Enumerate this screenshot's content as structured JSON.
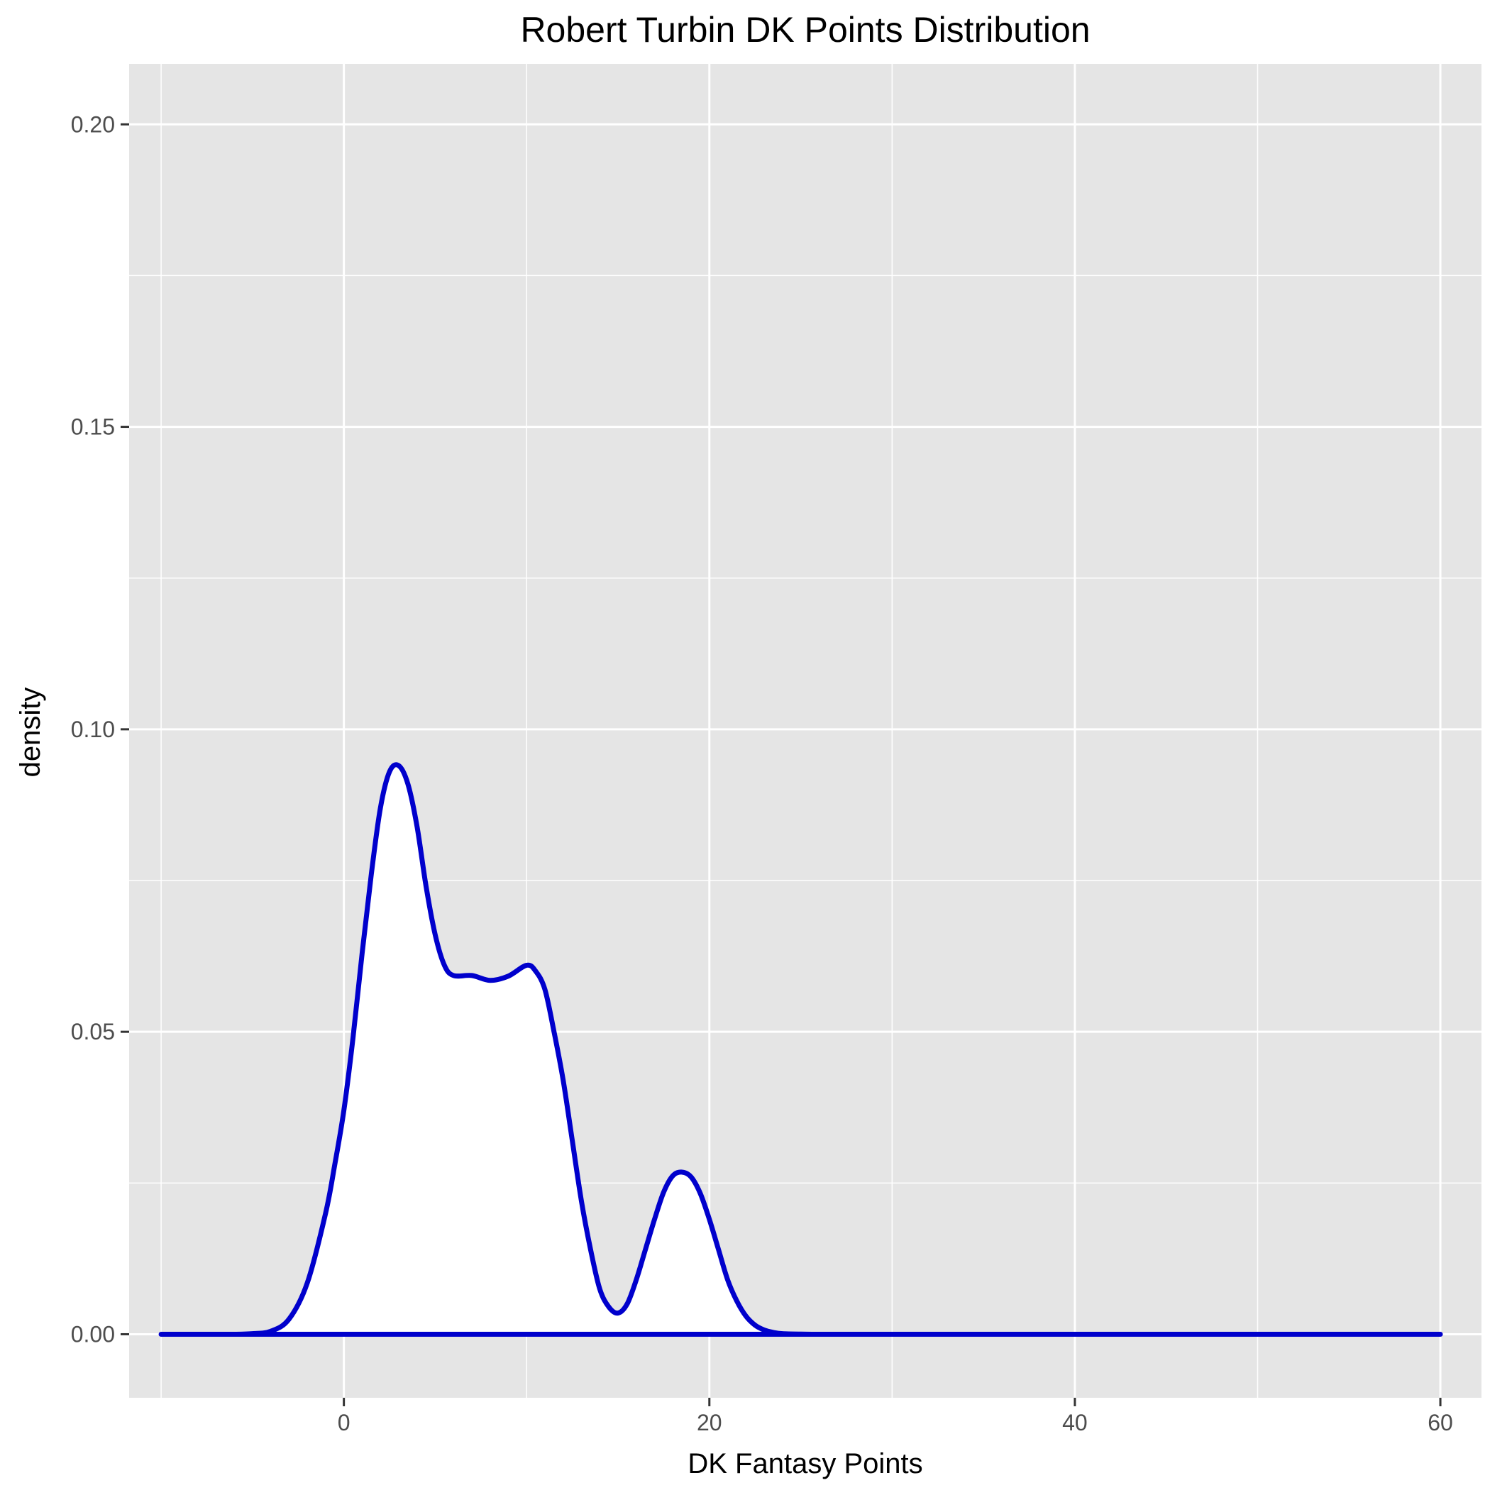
{
  "chart_data": {
    "type": "area",
    "title": "Robert Turbin DK Points Distribution",
    "xlabel": "DK Fantasy Points",
    "ylabel": "density",
    "xlim": [
      -11.75,
      62.25
    ],
    "ylim": [
      -0.0105,
      0.21
    ],
    "x_ticks": [
      0,
      20,
      40,
      60
    ],
    "x_tick_labels": [
      "0",
      "20",
      "40",
      "60"
    ],
    "x_minor_ticks": [
      -10,
      10,
      30,
      50
    ],
    "y_ticks": [
      0.0,
      0.05,
      0.1,
      0.15,
      0.2
    ],
    "y_tick_labels": [
      "0.00",
      "0.05",
      "0.10",
      "0.15",
      "0.20"
    ],
    "y_minor_ticks": [
      0.025,
      0.075,
      0.125,
      0.175
    ],
    "grid": true,
    "colors": {
      "panel_background": "#e5e5e5",
      "grid": "#ffffff",
      "line": "#0000cc",
      "fill": "#ffffff"
    },
    "series": [
      {
        "x": [
          -10,
          -8,
          -6,
          -5,
          -4,
          -3,
          -2,
          -1,
          -0.5,
          0,
          0.5,
          1,
          1.5,
          2,
          2.5,
          3,
          3.5,
          4,
          4.5,
          5,
          5.5,
          6,
          7,
          8,
          9,
          10,
          10.5,
          11,
          11.5,
          12,
          12.5,
          13,
          13.5,
          14,
          14.5,
          15,
          15.5,
          16,
          16.5,
          17,
          17.5,
          18,
          18.5,
          19,
          19.5,
          20,
          20.5,
          21,
          21.5,
          22,
          22.5,
          23,
          23.5,
          24,
          25,
          26,
          28,
          30,
          35,
          40,
          45,
          50,
          55,
          60
        ],
        "y": [
          0,
          0,
          0,
          0.0001,
          0.0005,
          0.0025,
          0.0085,
          0.02,
          0.028,
          0.037,
          0.049,
          0.063,
          0.076,
          0.087,
          0.093,
          0.094,
          0.091,
          0.084,
          0.074,
          0.066,
          0.061,
          0.0593,
          0.0593,
          0.0585,
          0.0592,
          0.061,
          0.06,
          0.057,
          0.05,
          0.042,
          0.032,
          0.022,
          0.014,
          0.0075,
          0.0045,
          0.0035,
          0.005,
          0.009,
          0.014,
          0.019,
          0.0235,
          0.0262,
          0.0268,
          0.026,
          0.0233,
          0.019,
          0.014,
          0.009,
          0.0055,
          0.003,
          0.0015,
          0.0007,
          0.0003,
          0.0001,
          2e-05,
          0,
          0,
          0,
          0,
          0,
          0,
          0,
          0,
          0
        ]
      }
    ]
  }
}
